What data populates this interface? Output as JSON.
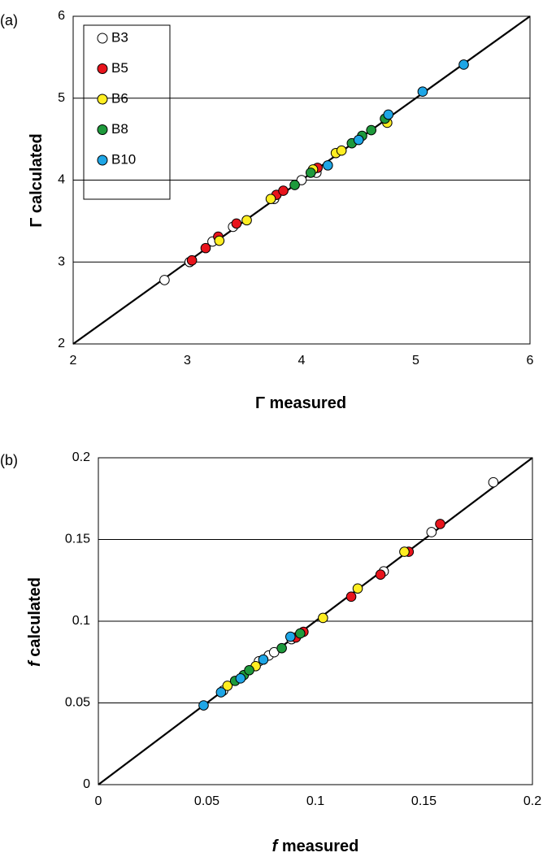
{
  "colors": {
    "B3": "#ffffff",
    "B5": "#e8141c",
    "B6": "#ffee22",
    "B8": "#1e9a3c",
    "B10": "#1ea6e6"
  },
  "chart_data": [
    {
      "type": "scatter",
      "panel_label": "(a)",
      "xlabel_symbol": "Γ",
      "xlabel_text": " measured",
      "ylabel_symbol": "Γ",
      "ylabel_text": " calculated",
      "xlim": [
        2,
        6
      ],
      "ylim": [
        2,
        6
      ],
      "xticks": [
        2,
        3,
        4,
        5,
        6
      ],
      "yticks": [
        2,
        3,
        4,
        5,
        6
      ],
      "xtick_labels": [
        "2",
        "3",
        "4",
        "5",
        "6"
      ],
      "ytick_labels": [
        "2",
        "3",
        "4",
        "5",
        "6"
      ],
      "grid": "horizontal",
      "reference_line": [
        [
          2,
          2
        ],
        [
          6,
          6
        ]
      ],
      "legend": {
        "position": "top-left",
        "entries": [
          "B3",
          "B5",
          "B6",
          "B8",
          "B10"
        ]
      },
      "series": [
        {
          "name": "B3",
          "x": [
            2.8,
            3.02,
            3.22,
            3.4,
            3.76,
            4.0,
            4.13
          ],
          "y": [
            2.78,
            3.0,
            3.25,
            3.43,
            3.77,
            4.0,
            4.09
          ]
        },
        {
          "name": "B5",
          "x": [
            3.04,
            3.16,
            3.27,
            3.43,
            3.78,
            3.84,
            4.14
          ],
          "y": [
            3.02,
            3.17,
            3.31,
            3.47,
            3.82,
            3.87,
            4.15
          ]
        },
        {
          "name": "B6",
          "x": [
            3.28,
            3.52,
            3.73,
            4.1,
            4.3,
            4.35,
            4.75
          ],
          "y": [
            3.26,
            3.51,
            3.77,
            4.13,
            4.33,
            4.36,
            4.7
          ]
        },
        {
          "name": "B8",
          "x": [
            3.94,
            4.08,
            4.44,
            4.53,
            4.61,
            4.73
          ],
          "y": [
            3.94,
            4.09,
            4.45,
            4.54,
            4.61,
            4.75
          ]
        },
        {
          "name": "B10",
          "x": [
            4.23,
            4.5,
            4.76,
            5.06,
            5.42
          ],
          "y": [
            4.18,
            4.49,
            4.8,
            5.08,
            5.41
          ]
        }
      ]
    },
    {
      "type": "scatter",
      "panel_label": "(b)",
      "xlabel_symbol": "f",
      "xlabel_text": " measured",
      "ylabel_symbol": "f",
      "ylabel_text": " calculated",
      "xlim": [
        0,
        0.2
      ],
      "ylim": [
        0,
        0.2
      ],
      "xticks": [
        0,
        0.05,
        0.1,
        0.15,
        0.2
      ],
      "yticks": [
        0,
        0.05,
        0.1,
        0.15,
        0.2
      ],
      "xtick_labels": [
        "0",
        "0.05",
        "0.1",
        "0.15",
        "0.2"
      ],
      "ytick_labels": [
        "0",
        "0.05",
        "0.1",
        "0.15",
        "0.2"
      ],
      "grid": "horizontal",
      "reference_line": [
        [
          0,
          0
        ],
        [
          0.2,
          0.2
        ]
      ],
      "series": [
        {
          "name": "B3",
          "x": [
            0.0575,
            0.074,
            0.0785,
            0.081,
            0.089,
            0.1315,
            0.1535,
            0.182
          ],
          "y": [
            0.0575,
            0.0755,
            0.079,
            0.081,
            0.089,
            0.1305,
            0.1545,
            0.185
          ]
        },
        {
          "name": "B5",
          "x": [
            0.091,
            0.0945,
            0.1165,
            0.13,
            0.143,
            0.1575
          ],
          "y": [
            0.09,
            0.0935,
            0.115,
            0.1285,
            0.1425,
            0.1595
          ]
        },
        {
          "name": "B6",
          "x": [
            0.0595,
            0.0725,
            0.1035,
            0.1195,
            0.141
          ],
          "y": [
            0.0605,
            0.0725,
            0.102,
            0.12,
            0.1425
          ]
        },
        {
          "name": "B8",
          "x": [
            0.063,
            0.067,
            0.0695,
            0.0845,
            0.093
          ],
          "y": [
            0.0635,
            0.067,
            0.07,
            0.0835,
            0.0925
          ]
        },
        {
          "name": "B10",
          "x": [
            0.0485,
            0.0565,
            0.0655,
            0.076,
            0.0885
          ],
          "y": [
            0.0485,
            0.0565,
            0.065,
            0.0765,
            0.0905
          ]
        }
      ]
    }
  ]
}
